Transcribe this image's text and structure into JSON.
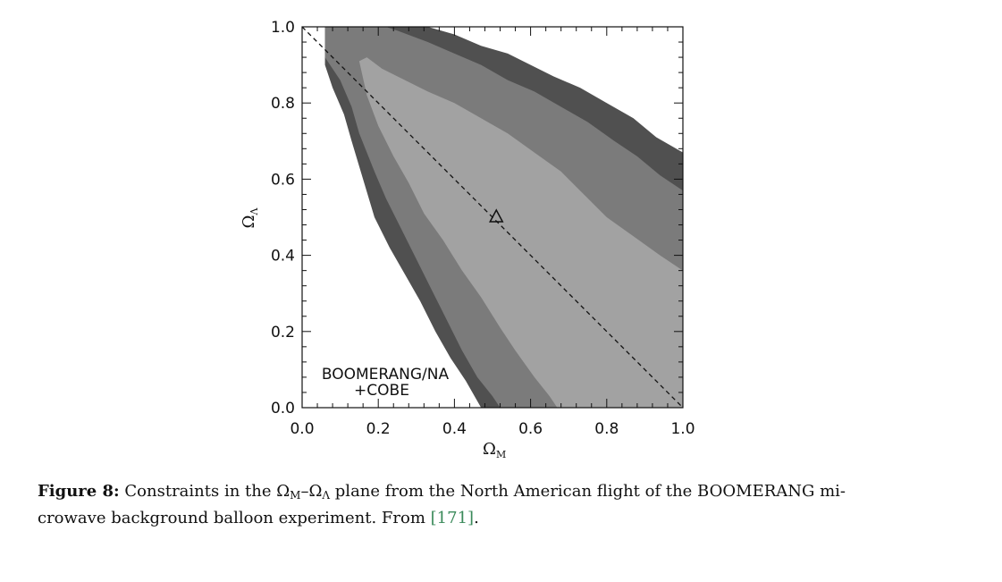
{
  "chart_data": {
    "type": "contour",
    "xlabel": "Ω",
    "xlabel_sub": "M",
    "ylabel": "Ω",
    "ylabel_sub": "Λ",
    "xlim": [
      0.0,
      1.0
    ],
    "ylim": [
      0.0,
      1.0
    ],
    "x_ticks": [
      "0.0",
      "0.2",
      "0.4",
      "0.6",
      "0.8",
      "1.0"
    ],
    "y_ticks": [
      "0.0",
      "0.2",
      "0.4",
      "0.6",
      "0.8",
      "1.0"
    ],
    "annotation_lines": [
      "BOOMERANG/NA",
      "+COBE"
    ],
    "flat_universe_line": [
      [
        0.0,
        1.0
      ],
      [
        1.0,
        0.0
      ]
    ],
    "best_fit_marker": {
      "x": 0.51,
      "y": 0.5,
      "symbol": "triangle"
    },
    "contours": [
      {
        "level": "outer",
        "color": "#505050",
        "polygon": [
          [
            0.06,
            1.0
          ],
          [
            0.06,
            0.9
          ],
          [
            0.08,
            0.84
          ],
          [
            0.11,
            0.77
          ],
          [
            0.13,
            0.7
          ],
          [
            0.16,
            0.6
          ],
          [
            0.19,
            0.5
          ],
          [
            0.23,
            0.42
          ],
          [
            0.27,
            0.35
          ],
          [
            0.31,
            0.28
          ],
          [
            0.35,
            0.2
          ],
          [
            0.39,
            0.13
          ],
          [
            0.43,
            0.07
          ],
          [
            0.47,
            0.0
          ],
          [
            1.0,
            0.0
          ],
          [
            1.0,
            0.67
          ],
          [
            0.93,
            0.71
          ],
          [
            0.87,
            0.76
          ],
          [
            0.8,
            0.8
          ],
          [
            0.73,
            0.84
          ],
          [
            0.66,
            0.87
          ],
          [
            0.6,
            0.9
          ],
          [
            0.54,
            0.93
          ],
          [
            0.47,
            0.95
          ],
          [
            0.4,
            0.98
          ],
          [
            0.33,
            1.0
          ]
        ]
      },
      {
        "level": "middle",
        "color": "#7b7b7b",
        "polygon": [
          [
            0.06,
            1.0
          ],
          [
            0.06,
            0.92
          ],
          [
            0.1,
            0.86
          ],
          [
            0.13,
            0.79
          ],
          [
            0.15,
            0.72
          ],
          [
            0.19,
            0.62
          ],
          [
            0.22,
            0.55
          ],
          [
            0.26,
            0.47
          ],
          [
            0.3,
            0.39
          ],
          [
            0.34,
            0.31
          ],
          [
            0.38,
            0.23
          ],
          [
            0.42,
            0.15
          ],
          [
            0.46,
            0.08
          ],
          [
            0.5,
            0.03
          ],
          [
            0.52,
            0.0
          ],
          [
            1.0,
            0.0
          ],
          [
            1.0,
            0.57
          ],
          [
            0.94,
            0.61
          ],
          [
            0.88,
            0.66
          ],
          [
            0.82,
            0.7
          ],
          [
            0.75,
            0.75
          ],
          [
            0.68,
            0.79
          ],
          [
            0.61,
            0.83
          ],
          [
            0.54,
            0.86
          ],
          [
            0.47,
            0.9
          ],
          [
            0.4,
            0.93
          ],
          [
            0.33,
            0.96
          ],
          [
            0.25,
            0.99
          ],
          [
            0.22,
            1.0
          ]
        ]
      },
      {
        "level": "inner",
        "color": "#a2a2a2",
        "polygon": [
          [
            0.15,
            0.91
          ],
          [
            0.17,
            0.82
          ],
          [
            0.2,
            0.74
          ],
          [
            0.24,
            0.66
          ],
          [
            0.28,
            0.59
          ],
          [
            0.32,
            0.51
          ],
          [
            0.37,
            0.44
          ],
          [
            0.42,
            0.36
          ],
          [
            0.47,
            0.29
          ],
          [
            0.52,
            0.21
          ],
          [
            0.56,
            0.15
          ],
          [
            0.61,
            0.08
          ],
          [
            0.65,
            0.03
          ],
          [
            0.67,
            0.0
          ],
          [
            1.0,
            0.0
          ],
          [
            1.0,
            0.36
          ],
          [
            0.94,
            0.4
          ],
          [
            0.87,
            0.45
          ],
          [
            0.8,
            0.5
          ],
          [
            0.74,
            0.56
          ],
          [
            0.68,
            0.62
          ],
          [
            0.61,
            0.67
          ],
          [
            0.54,
            0.72
          ],
          [
            0.47,
            0.76
          ],
          [
            0.4,
            0.8
          ],
          [
            0.33,
            0.83
          ],
          [
            0.27,
            0.86
          ],
          [
            0.21,
            0.89
          ],
          [
            0.17,
            0.92
          ]
        ]
      }
    ]
  },
  "caption": {
    "label": "Figure 8:",
    "text_1": " Constraints in the ",
    "omega": "Ω",
    "sub_m": "M",
    "dash": "–",
    "sub_lambda": "Λ",
    "text_2": " plane from the North American flight of the BOOMERANG mi-",
    "line_2": "crowave background balloon experiment. From ",
    "cite": "[171]",
    "end": "."
  }
}
